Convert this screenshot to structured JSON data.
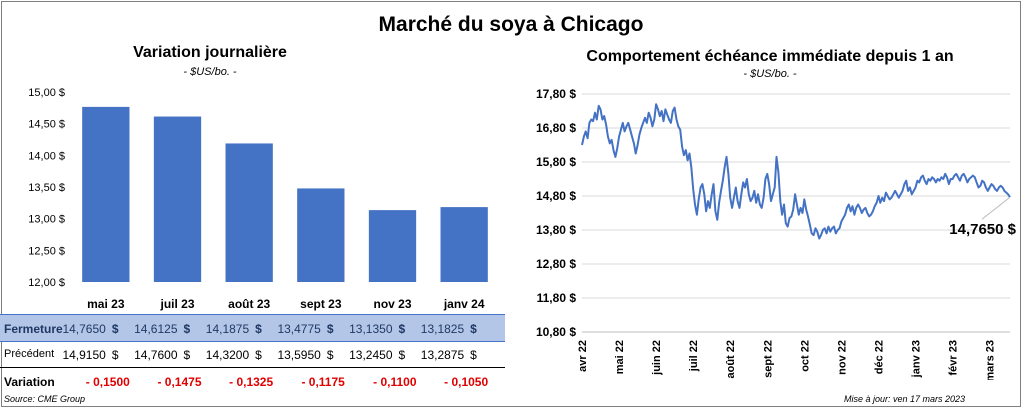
{
  "title": "Marché du soya à Chicago",
  "left_chart": {
    "title": "Variation  journalière",
    "unit": "- $US/bo. -"
  },
  "right_chart": {
    "title": "Comportement  échéance immédiate depuis 1 an",
    "unit": "- $US/bo. -",
    "last_value_label": "14,7650 $"
  },
  "table": {
    "currency": "$",
    "rows": [
      {
        "label": "Fermeture",
        "values": [
          "14,7650",
          "14,6125",
          "14,1875",
          "13,4775",
          "13,1350",
          "13,1825"
        ]
      },
      {
        "label": "Précédent",
        "values": [
          "14,9150",
          "14,7600",
          "14,3200",
          "13,5950",
          "13,2450",
          "13,2875"
        ]
      },
      {
        "label": "Variation",
        "values": [
          "- 0,1500",
          "- 0,1475",
          "- 0,1325",
          "- 0,1175",
          "- 0,1100",
          "- 0,1050"
        ]
      }
    ]
  },
  "footer": {
    "source": "Source: CME Group",
    "update": "Mise à jour: ven 17 mars 2023"
  },
  "colors": {
    "bar": "#4472c4",
    "line": "#4472c4",
    "negative": "#e00000",
    "table_highlight": "#b4c6e7"
  },
  "chart_data": [
    {
      "type": "bar",
      "categories": [
        "mai 23",
        "juil 23",
        "août 23",
        "sept 23",
        "nov 23",
        "janv 24"
      ],
      "values": [
        14.765,
        14.6125,
        14.1875,
        13.4775,
        13.135,
        13.1825
      ],
      "ylim": [
        12.0,
        15.0
      ],
      "yticks": [
        12.0,
        12.5,
        13.0,
        13.5,
        14.0,
        14.5,
        15.0
      ],
      "ytick_labels": [
        "12,00 $",
        "12,50 $",
        "13,00 $",
        "13,50 $",
        "14,00 $",
        "14,50 $",
        "15,00 $"
      ]
    },
    {
      "type": "line",
      "x_labels": [
        "avr 22",
        "mai 22",
        "juin 22",
        "juil 22",
        "août 22",
        "sept 22",
        "oct 22",
        "nov 22",
        "déc 22",
        "janv 23",
        "févr 23",
        "mars 23"
      ],
      "x_label_months": [
        0,
        1,
        2,
        3,
        4,
        5,
        6,
        7,
        8,
        9,
        10,
        11
      ],
      "x_range_months": [
        0,
        11.55
      ],
      "ylim": [
        10.8,
        17.8
      ],
      "yticks": [
        10.8,
        11.8,
        12.8,
        13.8,
        14.8,
        15.8,
        16.8,
        17.8
      ],
      "ytick_labels": [
        "10,80 $",
        "11,80 $",
        "12,80 $",
        "13,80 $",
        "14,80 $",
        "15,80 $",
        "16,80 $",
        "17,80 $"
      ],
      "series": [
        {
          "points": [
            [
              0.0,
              16.3
            ],
            [
              0.05,
              16.55
            ],
            [
              0.1,
              16.7
            ],
            [
              0.15,
              16.5
            ],
            [
              0.2,
              16.95
            ],
            [
              0.25,
              17.05
            ],
            [
              0.3,
              17.0
            ],
            [
              0.35,
              17.25
            ],
            [
              0.4,
              17.05
            ],
            [
              0.45,
              17.45
            ],
            [
              0.5,
              17.35
            ],
            [
              0.55,
              17.05
            ],
            [
              0.6,
              17.15
            ],
            [
              0.65,
              16.9
            ],
            [
              0.7,
              16.55
            ],
            [
              0.75,
              16.35
            ],
            [
              0.8,
              16.45
            ],
            [
              0.85,
              16.15
            ],
            [
              0.9,
              15.95
            ],
            [
              0.95,
              16.2
            ],
            [
              1.0,
              16.55
            ],
            [
              1.05,
              16.75
            ],
            [
              1.1,
              16.95
            ],
            [
              1.15,
              16.7
            ],
            [
              1.2,
              16.85
            ],
            [
              1.25,
              16.95
            ],
            [
              1.3,
              16.75
            ],
            [
              1.35,
              16.55
            ],
            [
              1.4,
              16.35
            ],
            [
              1.45,
              16.05
            ],
            [
              1.5,
              16.3
            ],
            [
              1.55,
              16.6
            ],
            [
              1.6,
              16.8
            ],
            [
              1.65,
              16.95
            ],
            [
              1.7,
              17.1
            ],
            [
              1.75,
              16.95
            ],
            [
              1.8,
              17.25
            ],
            [
              1.85,
              17.1
            ],
            [
              1.9,
              16.85
            ],
            [
              1.95,
              17.05
            ],
            [
              2.0,
              17.5
            ],
            [
              2.05,
              17.35
            ],
            [
              2.1,
              17.15
            ],
            [
              2.15,
              17.3
            ],
            [
              2.2,
              17.0
            ],
            [
              2.25,
              17.35
            ],
            [
              2.3,
              17.2
            ],
            [
              2.35,
              17.05
            ],
            [
              2.4,
              16.95
            ],
            [
              2.45,
              17.3
            ],
            [
              2.5,
              17.4
            ],
            [
              2.55,
              17.05
            ],
            [
              2.6,
              16.85
            ],
            [
              2.65,
              16.75
            ],
            [
              2.7,
              16.25
            ],
            [
              2.75,
              16.0
            ],
            [
              2.8,
              16.15
            ],
            [
              2.85,
              15.85
            ],
            [
              2.9,
              16.05
            ],
            [
              2.95,
              15.65
            ],
            [
              3.0,
              15.0
            ],
            [
              3.05,
              14.55
            ],
            [
              3.1,
              14.25
            ],
            [
              3.15,
              14.7
            ],
            [
              3.2,
              15.05
            ],
            [
              3.25,
              15.15
            ],
            [
              3.3,
              14.85
            ],
            [
              3.35,
              14.35
            ],
            [
              3.4,
              14.65
            ],
            [
              3.45,
              14.45
            ],
            [
              3.5,
              14.85
            ],
            [
              3.55,
              15.15
            ],
            [
              3.6,
              14.35
            ],
            [
              3.65,
              14.1
            ],
            [
              3.7,
              14.6
            ],
            [
              3.75,
              14.95
            ],
            [
              3.8,
              15.25
            ],
            [
              3.85,
              15.65
            ],
            [
              3.9,
              15.95
            ],
            [
              3.95,
              15.45
            ],
            [
              4.0,
              14.75
            ],
            [
              4.05,
              14.45
            ],
            [
              4.1,
              14.75
            ],
            [
              4.15,
              15.05
            ],
            [
              4.2,
              14.65
            ],
            [
              4.25,
              14.45
            ],
            [
              4.3,
              14.85
            ],
            [
              4.35,
              15.2
            ],
            [
              4.4,
              15.05
            ],
            [
              4.45,
              15.3
            ],
            [
              4.5,
              14.85
            ],
            [
              4.55,
              14.65
            ],
            [
              4.6,
              14.75
            ],
            [
              4.65,
              14.95
            ],
            [
              4.7,
              14.6
            ],
            [
              4.75,
              14.85
            ],
            [
              4.8,
              14.55
            ],
            [
              4.85,
              14.45
            ],
            [
              4.9,
              14.75
            ],
            [
              4.95,
              15.3
            ],
            [
              5.0,
              15.45
            ],
            [
              5.05,
              15.15
            ],
            [
              5.1,
              14.65
            ],
            [
              5.15,
              14.85
            ],
            [
              5.2,
              15.05
            ],
            [
              5.25,
              15.95
            ],
            [
              5.3,
              15.5
            ],
            [
              5.35,
              14.65
            ],
            [
              5.4,
              14.25
            ],
            [
              5.45,
              14.55
            ],
            [
              5.5,
              14.0
            ],
            [
              5.55,
              13.9
            ],
            [
              5.6,
              14.15
            ],
            [
              5.65,
              14.2
            ],
            [
              5.7,
              14.4
            ],
            [
              5.75,
              14.85
            ],
            [
              5.8,
              14.55
            ],
            [
              5.85,
              14.25
            ],
            [
              5.9,
              14.45
            ],
            [
              5.95,
              14.3
            ],
            [
              6.0,
              14.7
            ],
            [
              6.05,
              14.4
            ],
            [
              6.1,
              14.2
            ],
            [
              6.15,
              13.95
            ],
            [
              6.2,
              13.7
            ],
            [
              6.25,
              13.65
            ],
            [
              6.3,
              13.85
            ],
            [
              6.35,
              13.75
            ],
            [
              6.4,
              13.55
            ],
            [
              6.45,
              13.65
            ],
            [
              6.5,
              13.8
            ],
            [
              6.55,
              13.85
            ],
            [
              6.6,
              13.7
            ],
            [
              6.65,
              13.9
            ],
            [
              6.7,
              13.75
            ],
            [
              6.75,
              13.85
            ],
            [
              6.8,
              13.9
            ],
            [
              6.85,
              13.7
            ],
            [
              6.9,
              13.8
            ],
            [
              6.95,
              13.85
            ],
            [
              7.0,
              14.05
            ],
            [
              7.05,
              14.15
            ],
            [
              7.1,
              14.25
            ],
            [
              7.15,
              14.45
            ],
            [
              7.2,
              14.55
            ],
            [
              7.25,
              14.35
            ],
            [
              7.3,
              14.5
            ],
            [
              7.35,
              14.25
            ],
            [
              7.4,
              14.45
            ],
            [
              7.45,
              14.55
            ],
            [
              7.5,
              14.45
            ],
            [
              7.55,
              14.3
            ],
            [
              7.6,
              14.4
            ],
            [
              7.65,
              14.45
            ],
            [
              7.7,
              14.3
            ],
            [
              7.75,
              14.2
            ],
            [
              7.8,
              14.25
            ],
            [
              7.85,
              14.35
            ],
            [
              7.9,
              14.5
            ],
            [
              7.95,
              14.6
            ],
            [
              8.0,
              14.8
            ],
            [
              8.05,
              14.6
            ],
            [
              8.1,
              14.75
            ],
            [
              8.15,
              14.65
            ],
            [
              8.2,
              14.9
            ],
            [
              8.25,
              14.8
            ],
            [
              8.3,
              14.7
            ],
            [
              8.35,
              14.75
            ],
            [
              8.4,
              14.85
            ],
            [
              8.45,
              14.95
            ],
            [
              8.5,
              14.85
            ],
            [
              8.55,
              14.75
            ],
            [
              8.6,
              14.85
            ],
            [
              8.65,
              14.95
            ],
            [
              8.7,
              15.15
            ],
            [
              8.75,
              15.25
            ],
            [
              8.8,
              14.95
            ],
            [
              8.85,
              15.05
            ],
            [
              8.9,
              14.85
            ],
            [
              8.95,
              14.95
            ],
            [
              9.0,
              15.05
            ],
            [
              9.05,
              15.25
            ],
            [
              9.1,
              15.2
            ],
            [
              9.15,
              15.35
            ],
            [
              9.2,
              15.4
            ],
            [
              9.25,
              15.25
            ],
            [
              9.3,
              15.15
            ],
            [
              9.35,
              15.3
            ],
            [
              9.4,
              15.25
            ],
            [
              9.45,
              15.35
            ],
            [
              9.5,
              15.3
            ],
            [
              9.55,
              15.2
            ],
            [
              9.6,
              15.3
            ],
            [
              9.65,
              15.25
            ],
            [
              9.7,
              15.35
            ],
            [
              9.75,
              15.3
            ],
            [
              9.8,
              15.45
            ],
            [
              9.85,
              15.35
            ],
            [
              9.9,
              15.15
            ],
            [
              9.95,
              15.3
            ],
            [
              10.0,
              15.3
            ],
            [
              10.05,
              15.4
            ],
            [
              10.1,
              15.45
            ],
            [
              10.15,
              15.35
            ],
            [
              10.2,
              15.25
            ],
            [
              10.25,
              15.4
            ],
            [
              10.3,
              15.45
            ],
            [
              10.35,
              15.35
            ],
            [
              10.4,
              15.2
            ],
            [
              10.45,
              15.3
            ],
            [
              10.5,
              15.35
            ],
            [
              10.55,
              15.4
            ],
            [
              10.6,
              15.35
            ],
            [
              10.65,
              15.2
            ],
            [
              10.7,
              15.05
            ],
            [
              10.75,
              15.1
            ],
            [
              10.8,
              15.25
            ],
            [
              10.85,
              15.2
            ],
            [
              10.9,
              15.05
            ],
            [
              10.95,
              14.95
            ],
            [
              11.0,
              15.05
            ],
            [
              11.05,
              15.15
            ],
            [
              11.1,
              15.1
            ],
            [
              11.15,
              15.0
            ],
            [
              11.2,
              14.95
            ],
            [
              11.25,
              15.05
            ],
            [
              11.3,
              15.1
            ],
            [
              11.35,
              15.05
            ],
            [
              11.4,
              14.95
            ],
            [
              11.45,
              14.9
            ],
            [
              11.5,
              14.85
            ],
            [
              11.55,
              14.765
            ]
          ]
        }
      ]
    }
  ]
}
